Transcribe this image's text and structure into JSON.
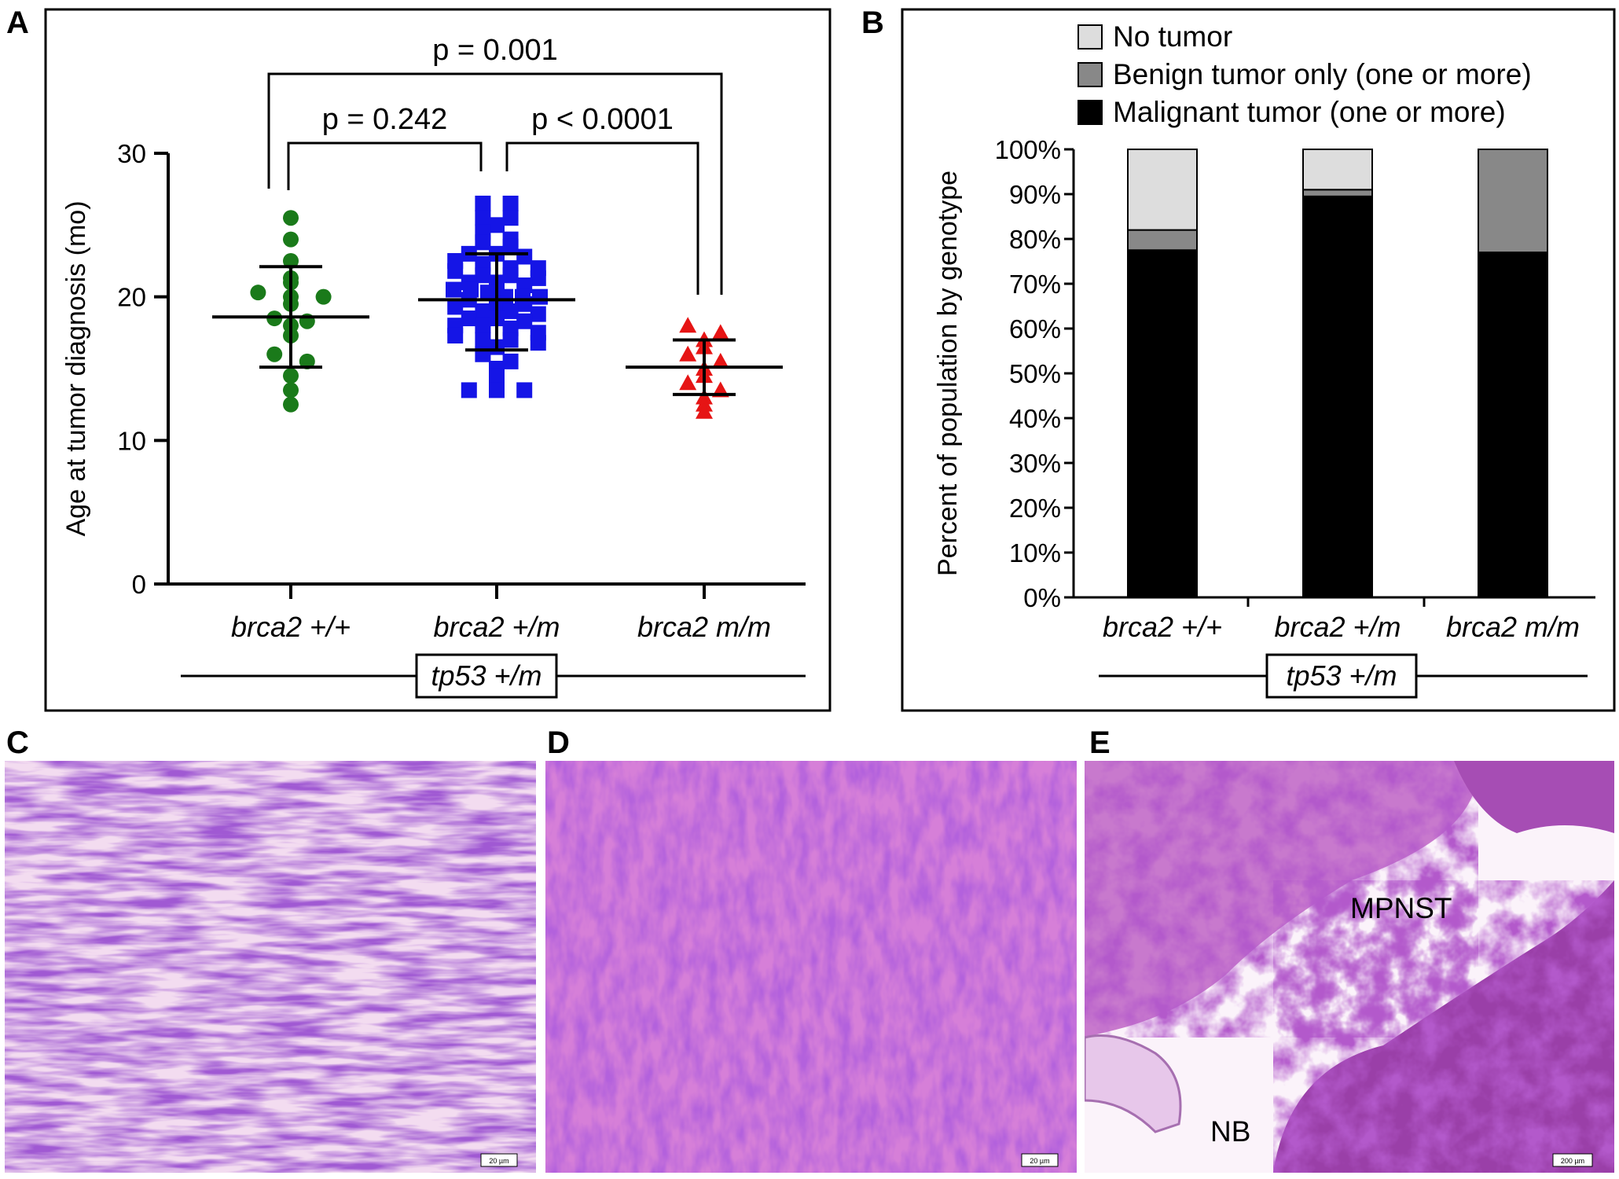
{
  "chart_data": [
    {
      "panel": "A",
      "type": "scatter",
      "ylabel": "Age at tumor diagnosis (mo)",
      "ylim": [
        0,
        30
      ],
      "yticks": [
        0,
        10,
        20,
        30
      ],
      "categories": [
        "brca2 +/+",
        "brca2 +/m",
        "brca2 m/m"
      ],
      "group_label": "tp53 +/m",
      "series": [
        {
          "category": "brca2 +/+",
          "color": "#1a7a1a",
          "marker": "circle",
          "mean": 18.6,
          "sd_low": 15.1,
          "sd_high": 22.1,
          "points": [
            25.5,
            24.0,
            22.5,
            21.3,
            21.0,
            20.3,
            20.0,
            20.0,
            19.5,
            18.5,
            18.3,
            18.0,
            17.3,
            16.0,
            15.5,
            14.5,
            13.5,
            12.5
          ]
        },
        {
          "category": "brca2 +/m",
          "color": "#1515e6",
          "marker": "square",
          "mean": 19.8,
          "sd_low": 16.3,
          "sd_high": 23.0,
          "points": [
            26.5,
            26.5,
            25.5,
            25.5,
            25.0,
            24.5,
            24.0,
            23.8,
            23.5,
            23.0,
            23.0,
            22.8,
            22.5,
            22.3,
            22.0,
            22.0,
            21.8,
            21.5,
            21.5,
            21.3,
            21.0,
            21.0,
            20.8,
            20.5,
            20.5,
            20.3,
            20.0,
            20.0,
            20.0,
            19.8,
            19.5,
            19.5,
            19.3,
            19.0,
            19.0,
            18.8,
            18.5,
            18.5,
            18.3,
            18.0,
            18.0,
            17.8,
            17.5,
            17.3,
            17.0,
            17.0,
            16.8,
            16.5,
            16.0,
            15.5,
            15.0,
            14.5,
            13.5,
            13.5,
            13.5
          ]
        },
        {
          "category": "brca2 m/m",
          "color": "#e61515",
          "marker": "triangle",
          "mean": 15.1,
          "sd_low": 13.2,
          "sd_high": 17.0,
          "points": [
            18.0,
            17.5,
            17.0,
            16.5,
            16.0,
            15.5,
            15.0,
            14.5,
            14.0,
            13.5,
            13.0,
            12.5,
            12.0
          ]
        }
      ],
      "comparisons": [
        {
          "groups": [
            "brca2 +/+",
            "brca2 +/m"
          ],
          "label": "p = 0.242"
        },
        {
          "groups": [
            "brca2 +/m",
            "brca2 m/m"
          ],
          "label": "p < 0.0001"
        },
        {
          "groups": [
            "brca2 +/+",
            "brca2 m/m"
          ],
          "label": "p = 0.001"
        }
      ]
    },
    {
      "panel": "B",
      "type": "bar",
      "stacked": true,
      "ylabel": "Percent of population by genotype",
      "ylim": [
        0,
        100
      ],
      "yticks": [
        "0%",
        "10%",
        "20%",
        "30%",
        "40%",
        "50%",
        "60%",
        "70%",
        "80%",
        "90%",
        "100%"
      ],
      "categories": [
        "brca2 +/+",
        "brca2 +/m",
        "brca2 m/m"
      ],
      "group_label": "tp53 +/m",
      "legend_placement": "top",
      "series": [
        {
          "name": "Malignant tumor (one or more)",
          "color": "#000000",
          "values": [
            77.5,
            89.5,
            77.0
          ]
        },
        {
          "name": "Benign tumor only (one or more)",
          "color": "#888888",
          "values": [
            4.5,
            1.5,
            23.0
          ]
        },
        {
          "name": "No tumor",
          "color": "#dddddd",
          "values": [
            18.0,
            9.0,
            0.0
          ]
        }
      ]
    }
  ],
  "panels": {
    "A": "A",
    "B": "B",
    "C": "C",
    "D": "D",
    "E": "E"
  },
  "micrographs": {
    "C": {
      "scale": "20 µm"
    },
    "D": {
      "scale": "20 µm"
    },
    "E": {
      "scale": "200 µm",
      "labels": [
        "MPNST",
        "NB"
      ]
    }
  }
}
